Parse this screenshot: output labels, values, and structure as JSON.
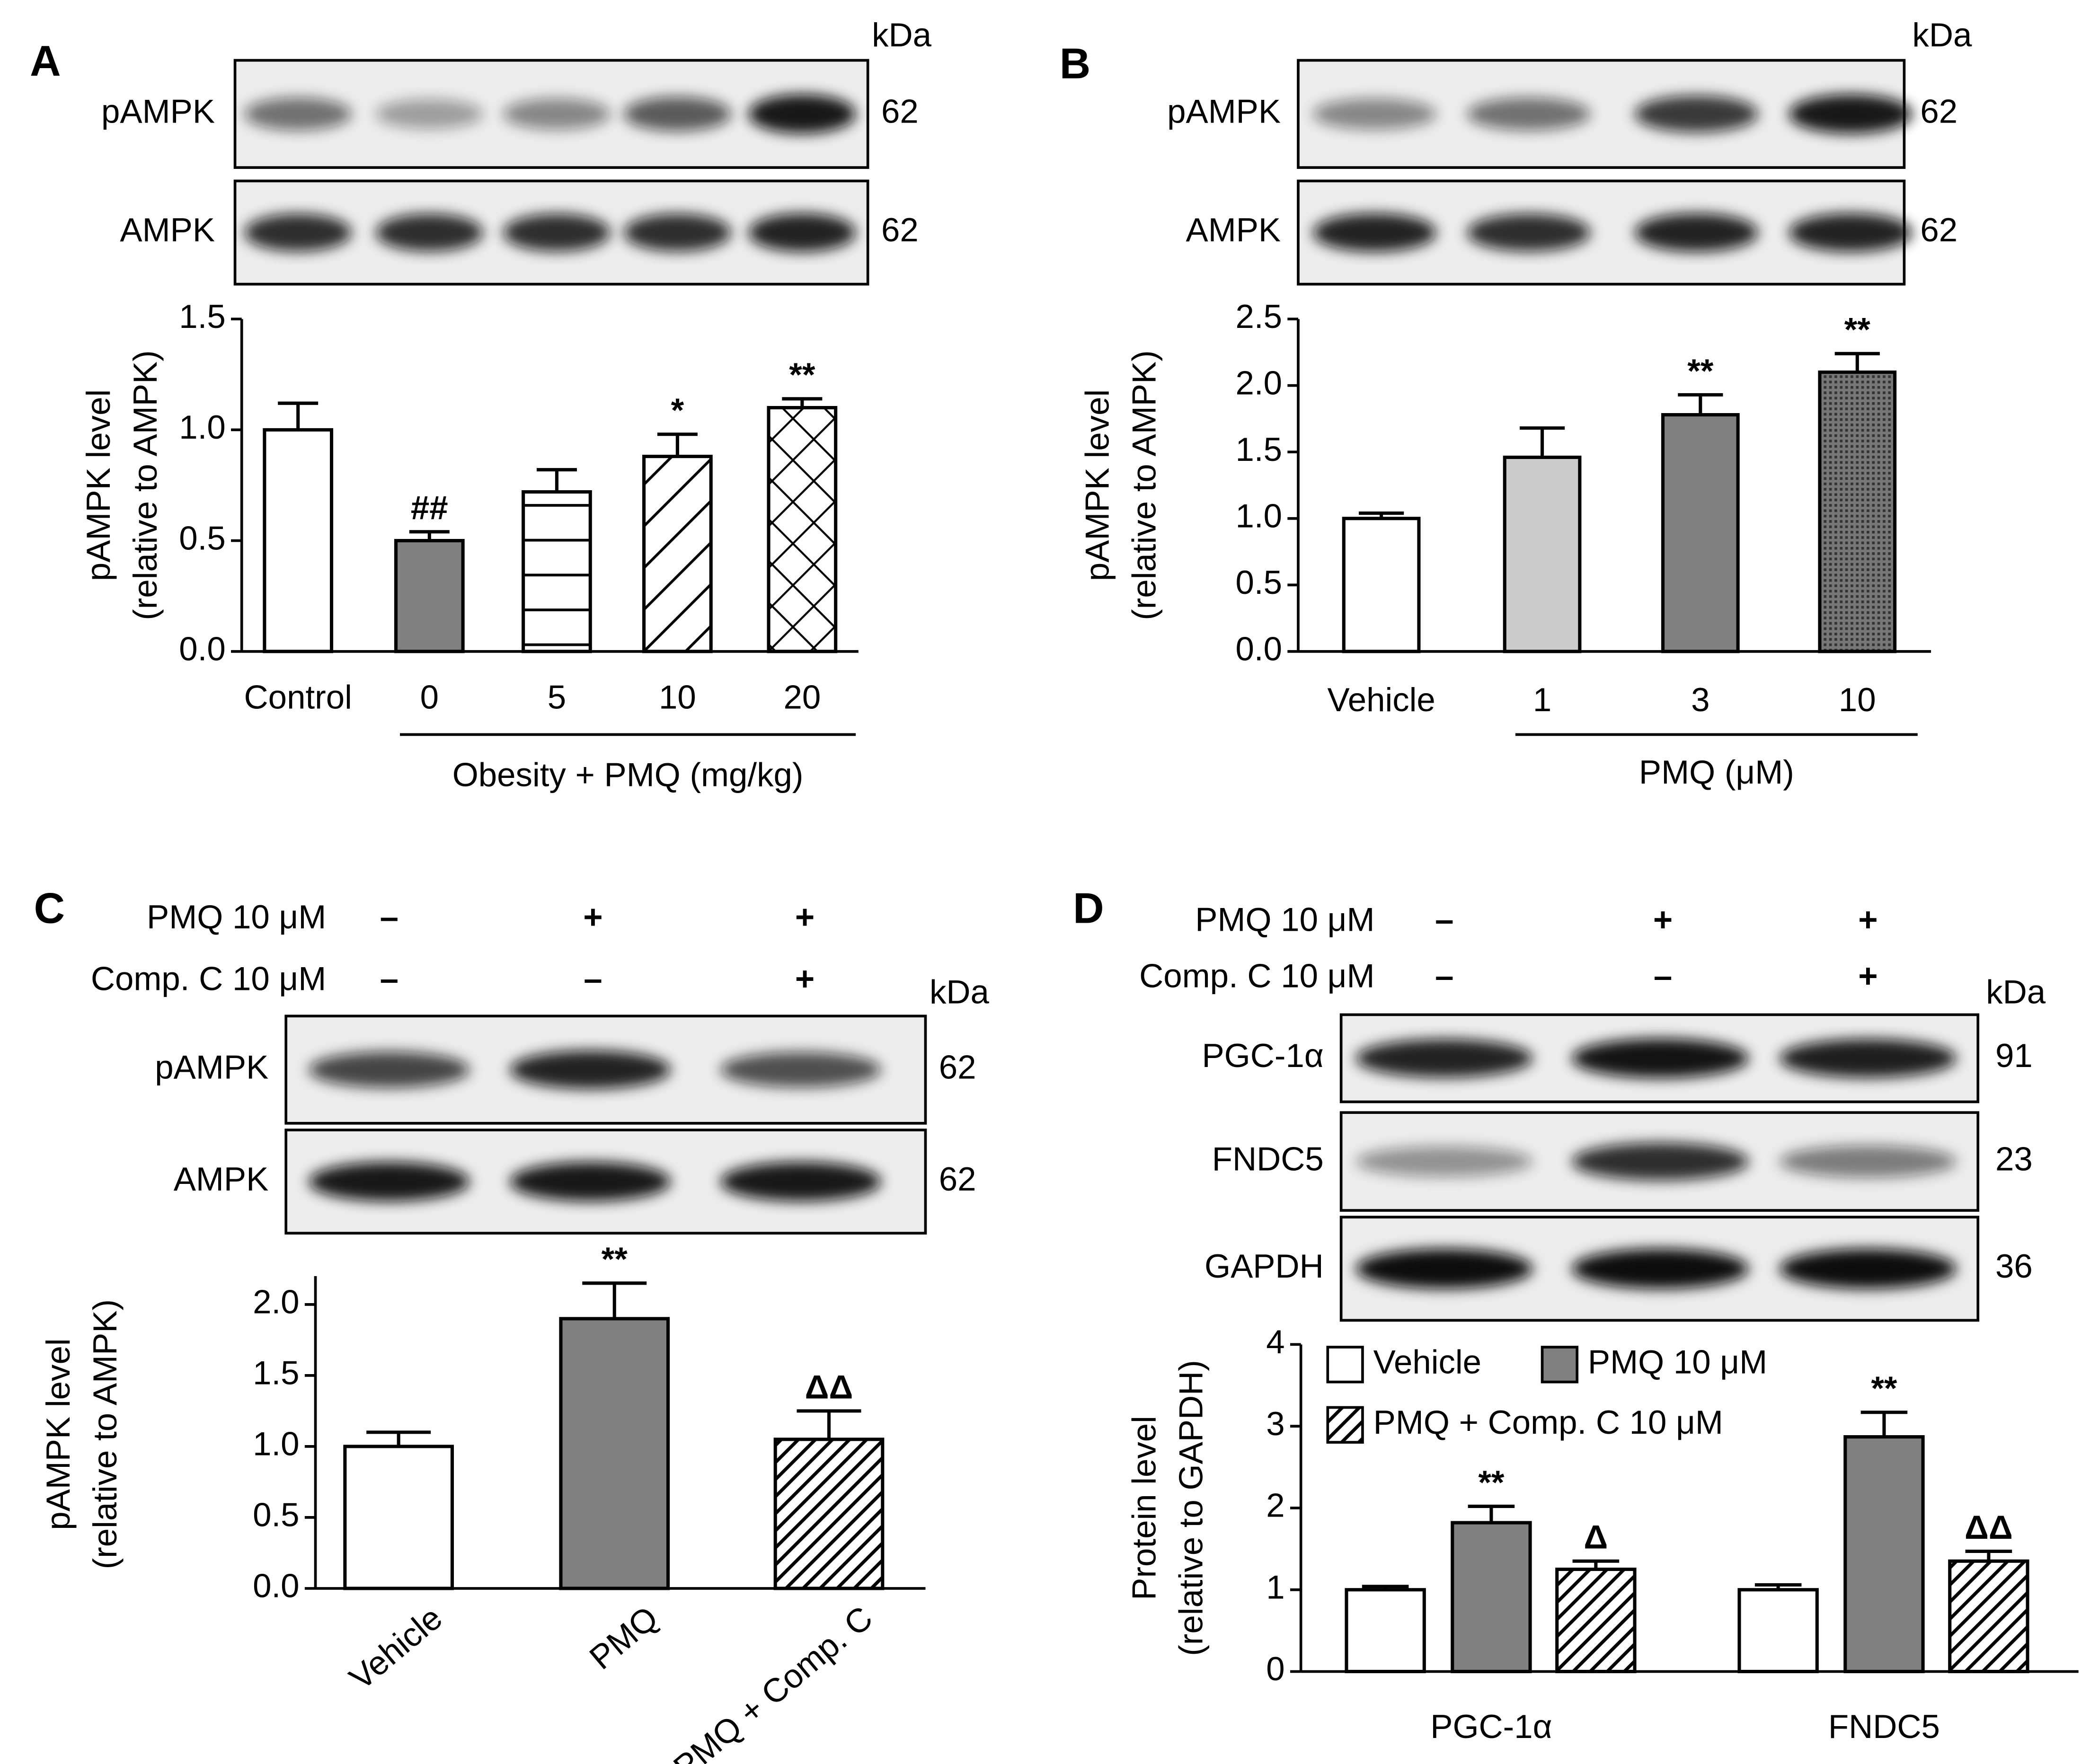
{
  "chart_data": [
    {
      "type": "bar",
      "panel": "A",
      "blot": {
        "unit": "kDa",
        "rows": [
          {
            "label": "pAMPK",
            "kda": "62"
          },
          {
            "label": "AMPK",
            "kda": "62"
          }
        ]
      },
      "ylabel": [
        "pAMPK level",
        "(relative to AMPK)"
      ],
      "categories": [
        "Control",
        "0",
        "5",
        "10",
        "20"
      ],
      "group_label": "Obesity + PMQ (mg/kg)",
      "values": [
        1.0,
        0.5,
        0.72,
        0.88,
        1.1
      ],
      "errors": [
        0.12,
        0.04,
        0.1,
        0.1,
        0.04
      ],
      "annotations": [
        null,
        "##",
        null,
        "*",
        "**"
      ],
      "fills": [
        "#ffffff",
        "#808080",
        "horizontal",
        "diagonal",
        "crosshatch"
      ],
      "ylim": [
        0,
        1.5
      ],
      "yticks": [
        {
          "value": 0,
          "label": "0.0"
        },
        {
          "value": 0.5,
          "label": "0.5"
        },
        {
          "value": 1,
          "label": "1.0"
        },
        {
          "value": 1.5,
          "label": "1.5"
        }
      ]
    },
    {
      "type": "bar",
      "panel": "B",
      "blot": {
        "unit": "kDa",
        "rows": [
          {
            "label": "pAMPK",
            "kda": "62"
          },
          {
            "label": "AMPK",
            "kda": "62"
          }
        ]
      },
      "ylabel": [
        "pAMPK level",
        "(relative to AMPK)"
      ],
      "categories": [
        "Vehicle",
        "1",
        "3",
        "10"
      ],
      "group_label": "PMQ (μM)",
      "values": [
        1.0,
        1.46,
        1.78,
        2.1
      ],
      "errors": [
        0.04,
        0.22,
        0.15,
        0.14
      ],
      "annotations": [
        null,
        null,
        "**",
        "**"
      ],
      "fills": [
        "#ffffff",
        "#cccccc",
        "#808080",
        "dots"
      ],
      "ylim": [
        0,
        2.5
      ],
      "yticks": [
        {
          "value": 0,
          "label": "0.0"
        },
        {
          "value": 0.5,
          "label": "0.5"
        },
        {
          "value": 1,
          "label": "1.0"
        },
        {
          "value": 1.5,
          "label": "1.5"
        },
        {
          "value": 2,
          "label": "2.0"
        },
        {
          "value": 2.5,
          "label": "2.5"
        }
      ]
    },
    {
      "type": "bar",
      "panel": "C",
      "treatments": [
        {
          "label": "PMQ 10 μM",
          "signs": [
            "–",
            "+",
            "+"
          ]
        },
        {
          "label": "Comp. C 10 μM",
          "signs": [
            "–",
            "–",
            "+"
          ]
        }
      ],
      "blot": {
        "unit": "kDa",
        "rows": [
          {
            "label": "pAMPK",
            "kda": "62"
          },
          {
            "label": "AMPK",
            "kda": "62"
          }
        ]
      },
      "ylabel": [
        "pAMPK level",
        "(relative to AMPK)"
      ],
      "categories": [
        "Vehicle",
        "PMQ",
        "PMQ + Comp. C"
      ],
      "values": [
        1.0,
        1.9,
        1.05
      ],
      "errors": [
        0.1,
        0.25,
        0.2
      ],
      "annotations": [
        null,
        "**",
        "ΔΔ"
      ],
      "fills": [
        "#ffffff",
        "#808080",
        "hatch"
      ],
      "ylim": [
        0,
        2.2
      ],
      "yticks": [
        {
          "value": 0,
          "label": "0.0"
        },
        {
          "value": 0.5,
          "label": "0.5"
        },
        {
          "value": 1,
          "label": "1.0"
        },
        {
          "value": 1.5,
          "label": "1.5"
        },
        {
          "value": 2,
          "label": "2.0"
        }
      ]
    },
    {
      "type": "grouped_bar",
      "panel": "D",
      "treatments": [
        {
          "label": "PMQ 10 μM",
          "signs": [
            "–",
            "+",
            "+"
          ]
        },
        {
          "label": "Comp. C 10 μM",
          "signs": [
            "–",
            "–",
            "+"
          ]
        }
      ],
      "blot": {
        "unit": "kDa",
        "rows": [
          {
            "label": "PGC-1α",
            "kda": "91"
          },
          {
            "label": "FNDC5",
            "kda": "23"
          },
          {
            "label": "GAPDH",
            "kda": "36"
          }
        ]
      },
      "ylabel": [
        "Protein level",
        "(relative to GAPDH)"
      ],
      "categories": [
        "PGC-1α",
        "FNDC5"
      ],
      "series": [
        {
          "name": "Vehicle",
          "color": "#ffffff",
          "values": [
            1.0,
            1.0
          ],
          "errors": [
            0.04,
            0.06
          ],
          "annotations": [
            null,
            null
          ]
        },
        {
          "name": "PMQ 10 μM",
          "color": "#808080",
          "values": [
            1.82,
            2.87
          ],
          "errors": [
            0.2,
            0.3
          ],
          "annotations": [
            "**",
            "**"
          ]
        },
        {
          "name": "PMQ + Comp. C 10 μM",
          "color": "hatch",
          "values": [
            1.25,
            1.35
          ],
          "errors": [
            0.1,
            0.12
          ],
          "annotations": [
            "Δ",
            "ΔΔ"
          ]
        }
      ],
      "legend": "upper left",
      "ylim": [
        0,
        4
      ],
      "yticks": [
        0,
        1,
        2,
        3,
        4
      ]
    }
  ]
}
